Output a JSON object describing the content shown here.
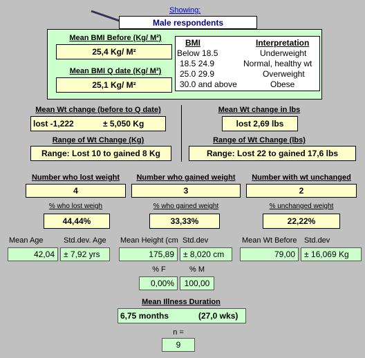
{
  "showing": {
    "label": "Showing:",
    "value": "Male respondents"
  },
  "bmi": {
    "before_label": "Mean BMI Before (Kg/ M²)",
    "before_value": "25,4 Kg/ M²",
    "qdate_label": "Mean BMI Q date (Kg/ M²)",
    "qdate_value": "25,1 Kg/ M²",
    "table_header_bmi": "BMI",
    "table_header_interp": "Interpretation",
    "rows": [
      {
        "range": "Below 18.5",
        "interp": "Underweight"
      },
      {
        "range": "18.5  24.9",
        "interp": "Normal, healthy wt"
      },
      {
        "range": "25.0  29.9",
        "interp": "Overweight"
      },
      {
        "range": "30.0 and above",
        "interp": "Obese"
      }
    ]
  },
  "wt_change": {
    "kg_label": "Mean Wt change (before to Q date)",
    "kg_value": "lost -1,222",
    "kg_sd": "± 5,050 Kg",
    "range_kg_label": "Range of Wt Change (Kg)",
    "range_kg_value": "Range: Lost 10 to gained 8 Kg",
    "lbs_label": "Mean Wt change in lbs",
    "lbs_value": "lost 2,69 lbs",
    "range_lbs_label": "Range of Wt Change (lbs)",
    "range_lbs_value": "Range: Lost 22 to gained 17,6 lbs"
  },
  "counts": {
    "lost_label": "Number who lost weight",
    "lost_value": "4",
    "gained_label": "Number who gained weight",
    "gained_value": "3",
    "unchanged_label": "Number with wt unchanged",
    "unchanged_value": "2",
    "pct_lost_label": "% who lost weigh",
    "pct_lost_value": "44,44%",
    "pct_gained_label": "% who gained weight",
    "pct_gained_value": "33,33%",
    "pct_unchanged_label": "% unchanged weight",
    "pct_unchanged_value": "22,22%"
  },
  "stats": {
    "age_label": "Mean Age",
    "age_value": "42,04",
    "age_sd_label": "Std.dev. Age",
    "age_sd_value": "± 7,92 yrs",
    "height_label": "Mean Height (cm",
    "height_value": "175,89",
    "height_sd_label": "Std.dev",
    "height_sd_value": "± 8,020 cm",
    "wt_before_label": "Mean Wt Before",
    "wt_before_value": "79,00",
    "wt_sd_label": "Std.dev",
    "wt_sd_value": "± 16,069 Kg"
  },
  "gender": {
    "f_label": "% F",
    "f_value": "0,00%",
    "m_label": "% M",
    "m_value": "100,00"
  },
  "illness": {
    "label": "Mean Illness Duration",
    "months": "6,75 months",
    "weeks": "(27,0 wks)",
    "n_label": "n =",
    "n_value": "9"
  }
}
